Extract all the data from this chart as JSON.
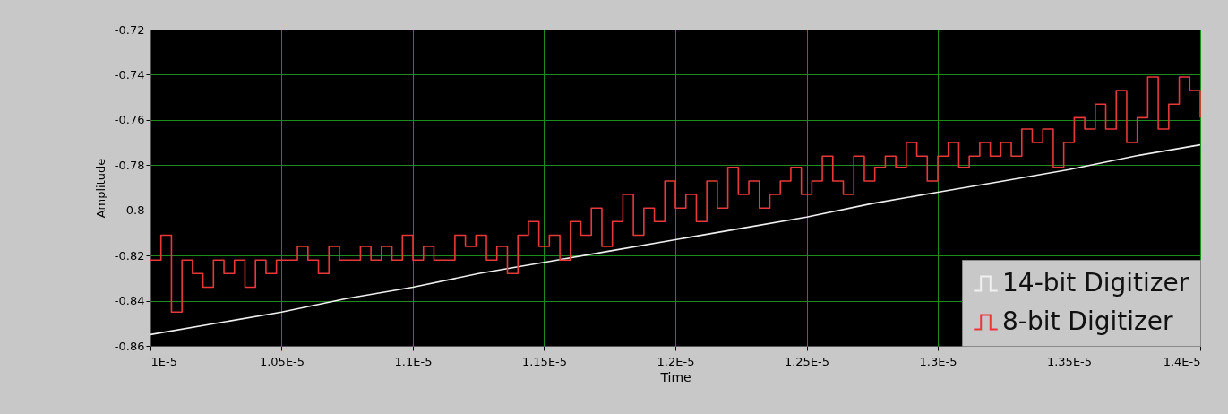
{
  "chart_data": {
    "type": "line",
    "xlabel": "Time",
    "ylabel": "Amplitude",
    "xlim": [
      1e-05,
      1.4e-05
    ],
    "xticks": [
      {
        "value": 1e-05,
        "label": "1E-5"
      },
      {
        "value": 1.05e-05,
        "label": "1.05E-5"
      },
      {
        "value": 1.1e-05,
        "label": "1.1E-5"
      },
      {
        "value": 1.15e-05,
        "label": "1.15E-5"
      },
      {
        "value": 1.2e-05,
        "label": "1.2E-5"
      },
      {
        "value": 1.25e-05,
        "label": "1.25E-5"
      },
      {
        "value": 1.3e-05,
        "label": "1.3E-5"
      },
      {
        "value": 1.35e-05,
        "label": "1.35E-5"
      },
      {
        "value": 1.4e-05,
        "label": "1.4E-5"
      }
    ],
    "ylim": [
      -0.86,
      -0.72
    ],
    "yticks": [
      -0.86,
      -0.84,
      -0.82,
      -0.8,
      -0.78,
      -0.76,
      -0.74,
      -0.72
    ],
    "grid": true,
    "legend": "bottom right",
    "series": [
      {
        "name": "14-bit Digitizer",
        "color": "#f0f0f0",
        "type": "line",
        "x": [
          1e-05,
          1.025e-05,
          1.05e-05,
          1.075e-05,
          1.1e-05,
          1.125e-05,
          1.15e-05,
          1.175e-05,
          1.2e-05,
          1.225e-05,
          1.25e-05,
          1.275e-05,
          1.3e-05,
          1.325e-05,
          1.35e-05,
          1.375e-05,
          1.4e-05
        ],
        "values": [
          -0.855,
          -0.85,
          -0.845,
          -0.839,
          -0.834,
          -0.828,
          -0.823,
          -0.818,
          -0.813,
          -0.808,
          -0.803,
          -0.797,
          -0.792,
          -0.787,
          -0.782,
          -0.776,
          -0.771
        ]
      },
      {
        "name": "8-bit Digitizer",
        "color": "#e8383a",
        "type": "step",
        "x": [
          1e-05,
          1.004e-05,
          1.008e-05,
          1.012e-05,
          1.016e-05,
          1.02e-05,
          1.024e-05,
          1.028e-05,
          1.032e-05,
          1.036e-05,
          1.04e-05,
          1.044e-05,
          1.048e-05,
          1.052e-05,
          1.056e-05,
          1.06e-05,
          1.064e-05,
          1.068e-05,
          1.072e-05,
          1.076e-05,
          1.08e-05,
          1.084e-05,
          1.088e-05,
          1.092e-05,
          1.096e-05,
          1.1e-05,
          1.104e-05,
          1.108e-05,
          1.112e-05,
          1.116e-05,
          1.12e-05,
          1.124e-05,
          1.128e-05,
          1.132e-05,
          1.136e-05,
          1.14e-05,
          1.144e-05,
          1.148e-05,
          1.152e-05,
          1.156e-05,
          1.16e-05,
          1.164e-05,
          1.168e-05,
          1.172e-05,
          1.176e-05,
          1.18e-05,
          1.184e-05,
          1.188e-05,
          1.192e-05,
          1.196e-05,
          1.2e-05,
          1.204e-05,
          1.208e-05,
          1.212e-05,
          1.216e-05,
          1.22e-05,
          1.224e-05,
          1.228e-05,
          1.232e-05,
          1.236e-05,
          1.24e-05,
          1.244e-05,
          1.248e-05,
          1.252e-05,
          1.256e-05,
          1.26e-05,
          1.264e-05,
          1.268e-05,
          1.272e-05,
          1.276e-05,
          1.28e-05,
          1.284e-05,
          1.288e-05,
          1.292e-05,
          1.296e-05,
          1.3e-05,
          1.304e-05,
          1.308e-05,
          1.312e-05,
          1.316e-05,
          1.32e-05,
          1.324e-05,
          1.328e-05,
          1.332e-05,
          1.336e-05,
          1.34e-05,
          1.344e-05,
          1.348e-05,
          1.352e-05,
          1.356e-05,
          1.36e-05,
          1.364e-05,
          1.368e-05,
          1.372e-05,
          1.376e-05,
          1.38e-05,
          1.384e-05,
          1.388e-05,
          1.392e-05,
          1.396e-05,
          1.4e-05
        ],
        "values": [
          -0.822,
          -0.811,
          -0.845,
          -0.822,
          -0.828,
          -0.834,
          -0.822,
          -0.828,
          -0.822,
          -0.834,
          -0.822,
          -0.828,
          -0.822,
          -0.822,
          -0.816,
          -0.822,
          -0.828,
          -0.816,
          -0.822,
          -0.822,
          -0.816,
          -0.822,
          -0.816,
          -0.822,
          -0.811,
          -0.822,
          -0.816,
          -0.822,
          -0.822,
          -0.811,
          -0.816,
          -0.811,
          -0.822,
          -0.816,
          -0.828,
          -0.811,
          -0.805,
          -0.816,
          -0.811,
          -0.822,
          -0.805,
          -0.811,
          -0.799,
          -0.816,
          -0.805,
          -0.793,
          -0.811,
          -0.799,
          -0.805,
          -0.787,
          -0.799,
          -0.793,
          -0.805,
          -0.787,
          -0.799,
          -0.781,
          -0.793,
          -0.787,
          -0.799,
          -0.793,
          -0.787,
          -0.781,
          -0.793,
          -0.787,
          -0.776,
          -0.787,
          -0.793,
          -0.776,
          -0.787,
          -0.781,
          -0.776,
          -0.781,
          -0.77,
          -0.776,
          -0.787,
          -0.776,
          -0.77,
          -0.781,
          -0.776,
          -0.77,
          -0.776,
          -0.77,
          -0.776,
          -0.764,
          -0.77,
          -0.764,
          -0.781,
          -0.77,
          -0.759,
          -0.764,
          -0.753,
          -0.764,
          -0.747,
          -0.77,
          -0.759,
          -0.741,
          -0.764,
          -0.753,
          -0.741,
          -0.747,
          -0.759
        ]
      }
    ]
  }
}
